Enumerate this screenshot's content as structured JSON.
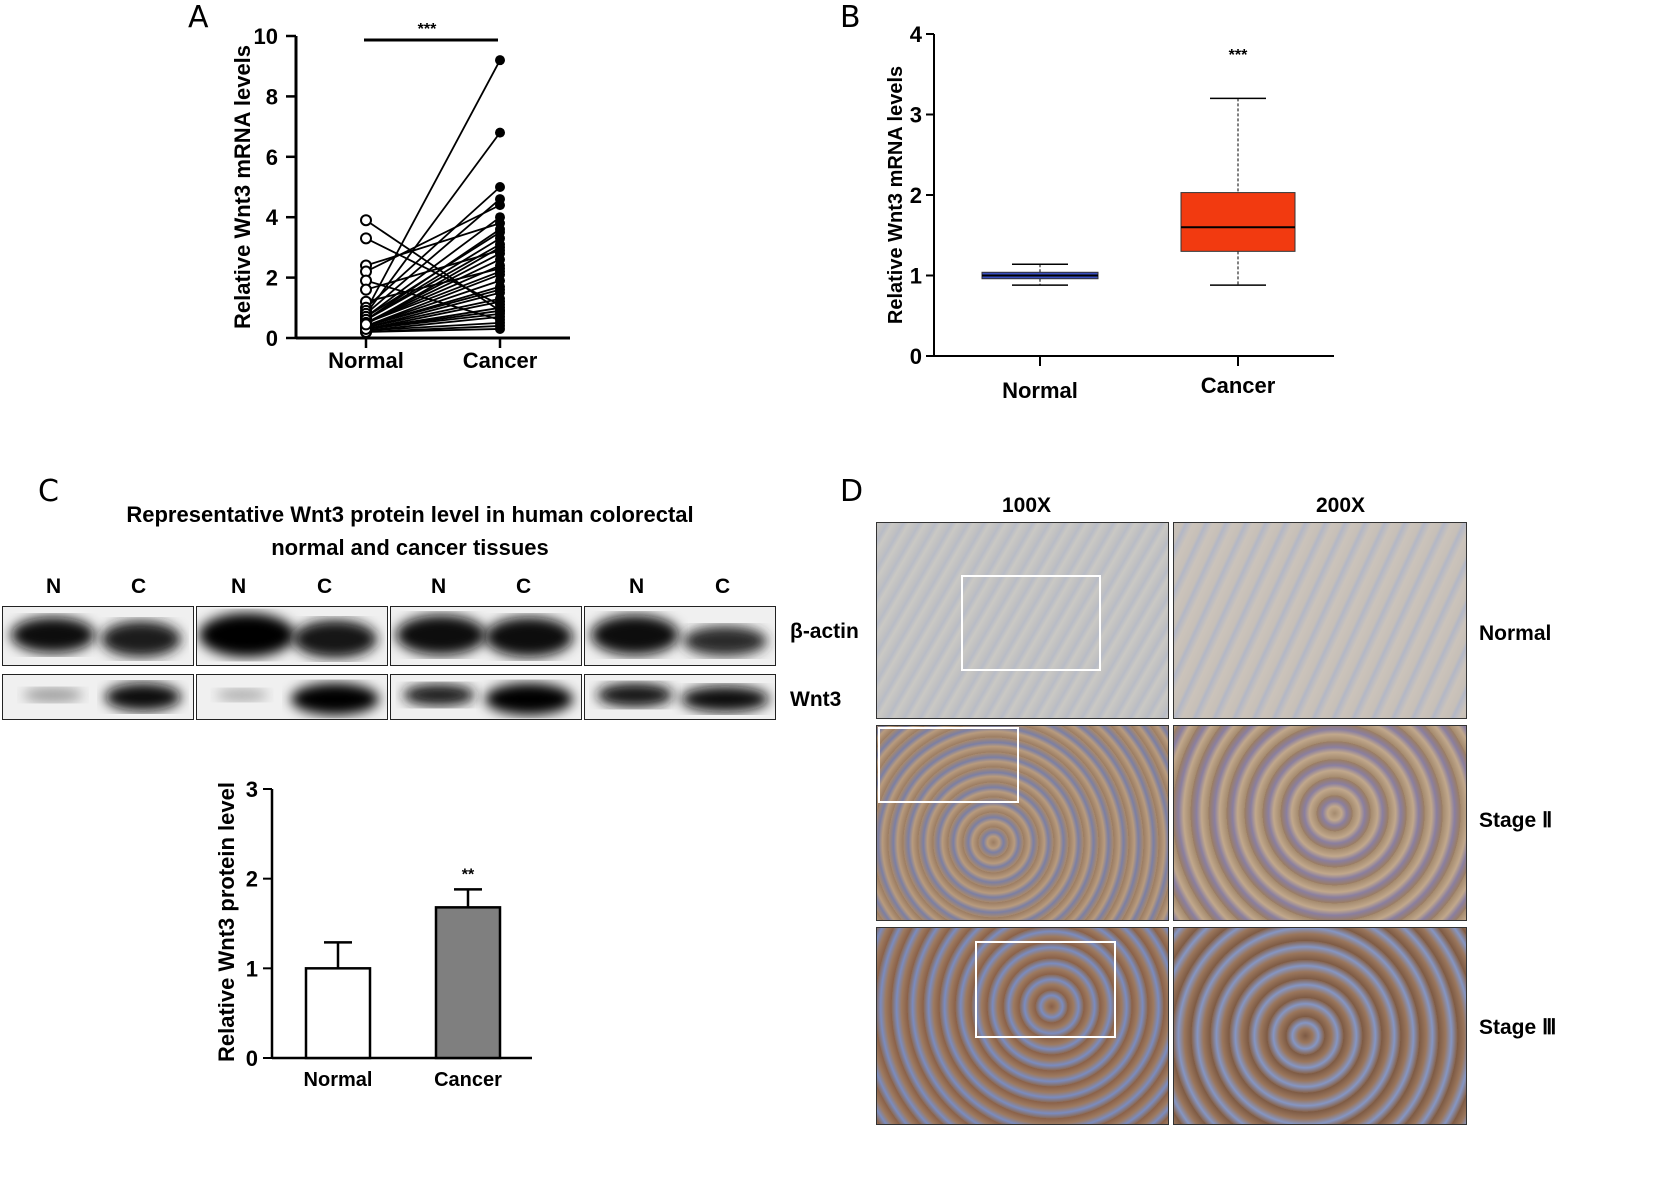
{
  "panels": {
    "A": {
      "letter": "A"
    },
    "B": {
      "letter": "B"
    },
    "C": {
      "letter": "C"
    },
    "D": {
      "letter": "D"
    }
  },
  "chart_data": [
    {
      "panel": "A",
      "type": "line",
      "ylabel": "Relative Wnt3 mRNA levels",
      "categories": [
        "Normal",
        "Cancer"
      ],
      "ylim": [
        0,
        10
      ],
      "yticks": [
        0,
        2,
        4,
        6,
        8,
        10
      ],
      "significance": "***",
      "pairs": [
        [
          3.9,
          0.9
        ],
        [
          3.3,
          1.1
        ],
        [
          2.4,
          3.8
        ],
        [
          2.2,
          4.4
        ],
        [
          1.9,
          0.6
        ],
        [
          1.6,
          2.9
        ],
        [
          1.2,
          2.3
        ],
        [
          1.0,
          5.0
        ],
        [
          0.9,
          9.2
        ],
        [
          0.8,
          6.8
        ],
        [
          0.8,
          4.6
        ],
        [
          0.7,
          4.0
        ],
        [
          0.7,
          3.5
        ],
        [
          0.6,
          3.3
        ],
        [
          0.6,
          3.1
        ],
        [
          0.5,
          2.8
        ],
        [
          0.5,
          2.6
        ],
        [
          0.5,
          2.4
        ],
        [
          0.4,
          2.1
        ],
        [
          0.4,
          1.9
        ],
        [
          0.4,
          1.7
        ],
        [
          0.35,
          1.5
        ],
        [
          0.35,
          1.3
        ],
        [
          0.3,
          1.2
        ],
        [
          0.3,
          1.0
        ],
        [
          0.3,
          0.9
        ],
        [
          0.25,
          0.7
        ],
        [
          0.25,
          0.5
        ],
        [
          0.2,
          0.4
        ],
        [
          0.2,
          0.3
        ],
        [
          0.6,
          3.6
        ],
        [
          0.5,
          2.2
        ],
        [
          0.4,
          1.6
        ],
        [
          0.3,
          0.8
        ],
        [
          0.45,
          3.0
        ]
      ]
    },
    {
      "panel": "B",
      "type": "box",
      "ylabel": "Relative Wnt3 mRNA levels",
      "categories": [
        "Normal",
        "Cancer"
      ],
      "ylim": [
        0,
        4
      ],
      "yticks": [
        0,
        1,
        2,
        3,
        4
      ],
      "significance": "***",
      "boxes": [
        {
          "name": "Normal",
          "min": 0.88,
          "q1": 0.96,
          "median": 1.0,
          "q3": 1.04,
          "max": 1.14,
          "color": "#3a4fbf"
        },
        {
          "name": "Cancer",
          "min": 0.88,
          "q1": 1.3,
          "median": 1.6,
          "q3": 2.03,
          "max": 3.2,
          "color": "#f23a10"
        }
      ]
    },
    {
      "panel": "C",
      "type": "bar",
      "ylabel": "Relative Wnt3 protein level",
      "categories": [
        "Normal",
        "Cancer"
      ],
      "values": [
        1.0,
        1.68
      ],
      "errors": [
        0.29,
        0.2
      ],
      "colors": [
        "#ffffff",
        "#7f7f7f"
      ],
      "ylim": [
        0,
        3
      ],
      "yticks": [
        0,
        1,
        2,
        3
      ],
      "significance": [
        "",
        "**"
      ]
    }
  ],
  "western_blot": {
    "title_line1": "Representative Wnt3 protein level in human colorectal",
    "title_line2": "normal and cancer tissues",
    "lanes": [
      "N",
      "C",
      "N",
      "C",
      "N",
      "C",
      "N",
      "C"
    ],
    "rows": [
      "β-actin",
      "Wnt3"
    ]
  },
  "ihc": {
    "columns": [
      "100X",
      "200X"
    ],
    "rows": [
      "Normal",
      "Stage Ⅱ",
      "Stage Ⅲ"
    ]
  }
}
